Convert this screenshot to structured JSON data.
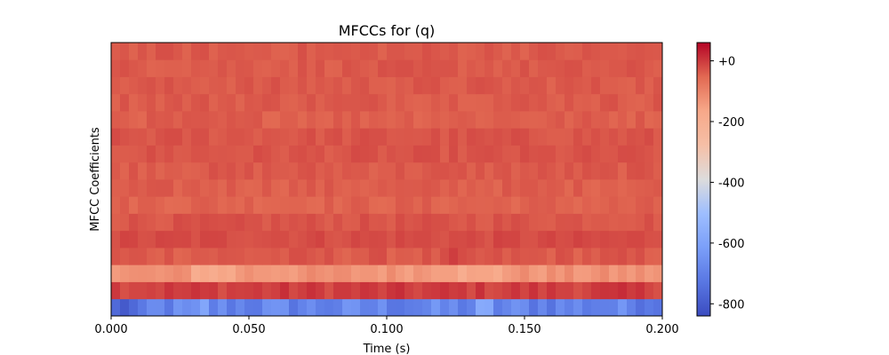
{
  "chart_data": {
    "type": "heatmap",
    "title": "MFCCs for (q)",
    "xlabel": "Time (s)",
    "ylabel": "MFCC Coefficients",
    "x_ticks": [
      "0.000",
      "0.050",
      "0.100",
      "0.150",
      "0.200"
    ],
    "x_tick_values": [
      0.0,
      0.05,
      0.1,
      0.15,
      0.2
    ],
    "xlim": [
      0.0,
      0.2
    ],
    "n_coefficients": 16,
    "n_frames": 62,
    "colormap": "coolwarm",
    "colorbar": {
      "range": [
        -840,
        60
      ],
      "ticks": [
        "+0",
        "-200",
        "-400",
        "-600",
        "-800"
      ],
      "tick_values": [
        0,
        -200,
        -400,
        -600,
        -800
      ]
    },
    "coefficient_base_values": [
      -690,
      -5,
      -130,
      -35,
      -20,
      -30,
      -45,
      -40,
      -35,
      -30,
      -30,
      -40,
      -35,
      -35,
      -35,
      -35
    ],
    "coefficient_variation": [
      60,
      20,
      25,
      15,
      12,
      12,
      12,
      12,
      12,
      12,
      12,
      12,
      12,
      12,
      12,
      12
    ],
    "grid": false,
    "legend": "none"
  }
}
